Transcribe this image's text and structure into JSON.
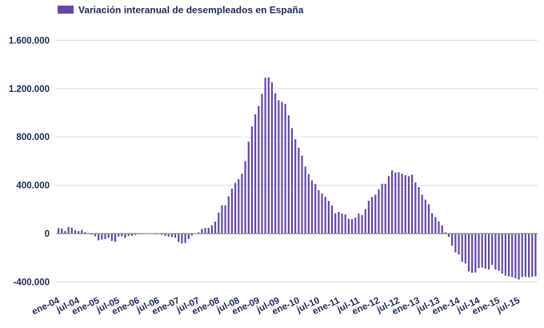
{
  "chart_data": {
    "type": "bar",
    "title": "",
    "legend": [
      {
        "label": "Variación interanual de desempleados en España",
        "color": "#6448a6"
      }
    ],
    "legend_placement": "top-left",
    "xlabel": "",
    "ylabel": "",
    "ylim": [
      -400000,
      1600000
    ],
    "yticks": [
      -400000,
      0,
      400000,
      800000,
      1200000,
      1600000
    ],
    "ytick_labels": [
      "-400.000",
      "0",
      "400.000",
      "800.000",
      "1.200.000",
      "1.600.000"
    ],
    "grid": true,
    "xtick_labels": [
      "ene-04",
      "jul-04",
      "ene-05",
      "jul-05",
      "ene-06",
      "jul-06",
      "ene-07",
      "jul-07",
      "ene-08",
      "jul-08",
      "ene-09",
      "jul-09",
      "ene-10",
      "jul-10",
      "ene-11",
      "jul-11",
      "ene-12",
      "jul-12",
      "ene-13",
      "jul-13",
      "ene-14",
      "jul-14",
      "ene-15",
      "jul-15"
    ],
    "categories": [
      "ene-04",
      "feb-04",
      "mar-04",
      "abr-04",
      "may-04",
      "jun-04",
      "jul-04",
      "ago-04",
      "sep-04",
      "oct-04",
      "nov-04",
      "dic-04",
      "ene-05",
      "feb-05",
      "mar-05",
      "abr-05",
      "may-05",
      "jun-05",
      "jul-05",
      "ago-05",
      "sep-05",
      "oct-05",
      "nov-05",
      "dic-05",
      "ene-06",
      "feb-06",
      "mar-06",
      "abr-06",
      "may-06",
      "jun-06",
      "jul-06",
      "ago-06",
      "sep-06",
      "oct-06",
      "nov-06",
      "dic-06",
      "ene-07",
      "feb-07",
      "mar-07",
      "abr-07",
      "may-07",
      "jun-07",
      "jul-07",
      "ago-07",
      "sep-07",
      "oct-07",
      "nov-07",
      "dic-07",
      "ene-08",
      "feb-08",
      "mar-08",
      "abr-08",
      "may-08",
      "jun-08",
      "jul-08",
      "ago-08",
      "sep-08",
      "oct-08",
      "nov-08",
      "dic-08",
      "ene-09",
      "feb-09",
      "mar-09",
      "abr-09",
      "may-09",
      "jun-09",
      "jul-09",
      "ago-09",
      "sep-09",
      "oct-09",
      "nov-09",
      "dic-09",
      "ene-10",
      "feb-10",
      "mar-10",
      "abr-10",
      "may-10",
      "jun-10",
      "jul-10",
      "ago-10",
      "sep-10",
      "oct-10",
      "nov-10",
      "dic-10",
      "ene-11",
      "feb-11",
      "mar-11",
      "abr-11",
      "may-11",
      "jun-11",
      "jul-11",
      "ago-11",
      "sep-11",
      "oct-11",
      "nov-11",
      "dic-11",
      "ene-12",
      "feb-12",
      "mar-12",
      "abr-12",
      "may-12",
      "jun-12",
      "jul-12",
      "ago-12",
      "sep-12",
      "oct-12",
      "nov-12",
      "dic-12",
      "ene-13",
      "feb-13",
      "mar-13",
      "abr-13",
      "may-13",
      "jun-13",
      "jul-13",
      "ago-13",
      "sep-13",
      "oct-13",
      "nov-13",
      "dic-13",
      "ene-14",
      "feb-14",
      "mar-14",
      "abr-14",
      "may-14",
      "jun-14",
      "jul-14",
      "ago-14",
      "sep-14",
      "oct-14",
      "nov-14",
      "dic-14",
      "ene-15",
      "feb-15",
      "mar-15",
      "abr-15",
      "may-15",
      "jun-15",
      "jul-15",
      "ago-15",
      "sep-15",
      "oct-15",
      "nov-15",
      "dic-15"
    ],
    "values": [
      45000,
      42000,
      22000,
      55000,
      50000,
      28000,
      20000,
      30000,
      12000,
      5000,
      -8000,
      -22000,
      -55000,
      -50000,
      -45000,
      -35000,
      -60000,
      -68000,
      -25000,
      -22000,
      -35000,
      -20000,
      -18000,
      -10000,
      -5000,
      -3000,
      -3000,
      -2000,
      -4000,
      -6000,
      2000,
      -10000,
      -18000,
      -25000,
      -28000,
      -35000,
      -70000,
      -82000,
      -78000,
      -45000,
      -15000,
      0,
      11000,
      40000,
      46000,
      48000,
      68000,
      99000,
      174000,
      235000,
      235000,
      308000,
      372000,
      420000,
      451000,
      495000,
      600000,
      761000,
      887000,
      988000,
      1056000,
      1157000,
      1291000,
      1294000,
      1252000,
      1162000,
      1104000,
      1089000,
      1074000,
      979000,
      873000,
      781000,
      711000,
      645000,
      554000,
      493000,
      440000,
      411000,
      359000,
      332000,
      304000,
      271000,
      231000,
      169000,
      180000,
      165000,
      158000,
      123000,
      121000,
      132000,
      165000,
      154000,
      202000,
      272000,
      304000,
      322000,
      367000,
      412000,
      412000,
      475000,
      524000,
      506000,
      508000,
      495000,
      484000,
      475000,
      488000,
      423000,
      385000,
      322000,
      281000,
      243000,
      169000,
      137000,
      101000,
      68000,
      11000,
      -27000,
      -101000,
      -155000,
      -173000,
      -234000,
      -248000,
      -313000,
      -324000,
      -322000,
      -286000,
      -281000,
      -290000,
      -297000,
      -259000,
      -297000,
      -308000,
      -330000,
      -349000,
      -355000,
      -360000,
      -370000,
      -380000,
      -360000,
      -358000,
      -362000,
      -358000,
      -355000
    ]
  }
}
